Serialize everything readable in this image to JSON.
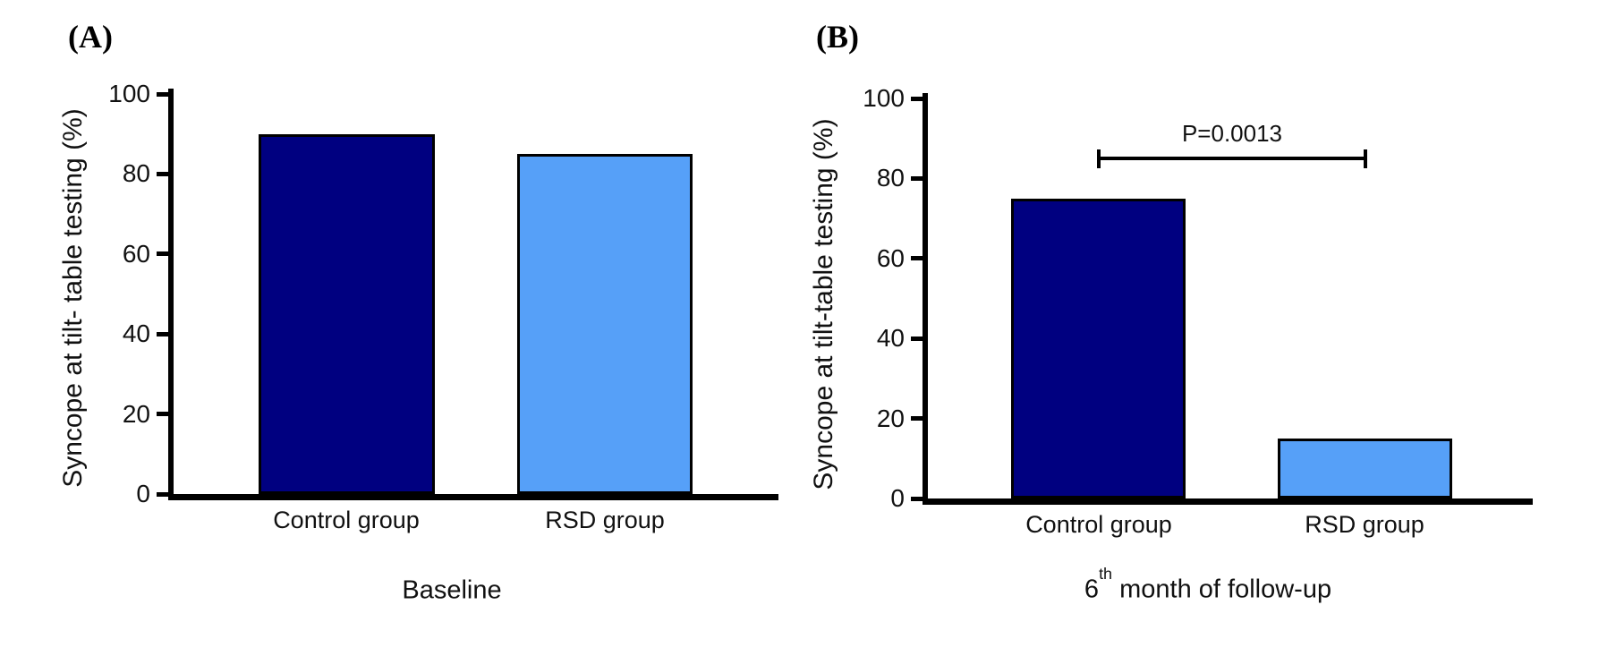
{
  "figure": {
    "axis_color": "#000000",
    "text_color": "#111111"
  },
  "chart_data": [
    {
      "type": "bar",
      "panel_label": "(A)",
      "title": "Baseline",
      "title_parts": {
        "prefix": "Baseline",
        "sup": "",
        "rest": ""
      },
      "ylabel": "Syncope at tilt- table testing (%)",
      "xlabel": "Baseline",
      "categories": [
        "Control group",
        "RSD group"
      ],
      "values": [
        90,
        85
      ],
      "bar_colors": [
        "#000080",
        "#56A0F8"
      ],
      "yticks": [
        100,
        80,
        60,
        40,
        20,
        0
      ],
      "ylim": [
        0,
        100
      ],
      "grid": "off",
      "legend": "none",
      "annotation": null
    },
    {
      "type": "bar",
      "panel_label": "(B)",
      "title": "6th month of follow-up",
      "title_parts": {
        "prefix": "6",
        "sup": "th",
        "rest": " month of follow-up"
      },
      "ylabel": "Syncope at tilt-table testing (%)",
      "xlabel": "6th month of follow-up",
      "categories": [
        "Control group",
        "RSD group"
      ],
      "values": [
        75,
        15
      ],
      "bar_colors": [
        "#000080",
        "#56A0F8"
      ],
      "yticks": [
        100,
        80,
        60,
        40,
        20,
        0
      ],
      "ylim": [
        0,
        100
      ],
      "grid": "off",
      "legend": "none",
      "annotation": {
        "text": "P=0.0013",
        "between": [
          "Control group",
          "RSD group"
        ]
      }
    }
  ]
}
